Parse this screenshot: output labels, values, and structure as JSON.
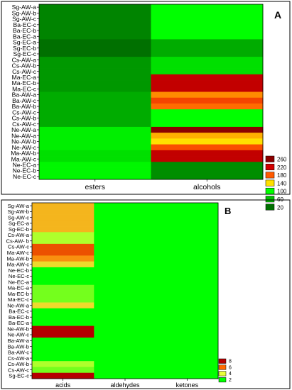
{
  "chart_data": [
    {
      "type": "heatmap",
      "panel": "A",
      "columns": [
        "esters",
        "alcohols"
      ],
      "rows": [
        "Sg-AW-a",
        "Sg-AW-b",
        "Sg-AW-c",
        "Ba-EC-c",
        "Ba-EC-b",
        "Ba-EC-a",
        "Sg-EC-a",
        "Sg-EC-b",
        "Sg-EC-c",
        "Cs-AW-a",
        "Cs-AW-b",
        "Cs-AW-c",
        "Ma-EC-a",
        "Ma-EC-b",
        "Ma-EC-c",
        "Ba-AW-a",
        "Ba-AW-c",
        "Ba-AW-b",
        "Cs-AW-c",
        "Cs-AW-b",
        "Cs-AW-c",
        "Ne-AW-a",
        "Ne-AW-a",
        "Ne-AW-b",
        "Ne-AW-c",
        "Ma-AW-b",
        "Ma-AW-c",
        "Ne-EC-a",
        "Ne-EC-b",
        "Ne-EC-c"
      ],
      "values": [
        [
          30,
          100
        ],
        [
          30,
          100
        ],
        [
          30,
          100
        ],
        [
          30,
          100
        ],
        [
          30,
          100
        ],
        [
          30,
          100
        ],
        [
          10,
          50
        ],
        [
          10,
          50
        ],
        [
          10,
          50
        ],
        [
          40,
          80
        ],
        [
          40,
          80
        ],
        [
          40,
          80
        ],
        [
          40,
          230
        ],
        [
          40,
          230
        ],
        [
          40,
          230
        ],
        [
          50,
          165
        ],
        [
          50,
          190
        ],
        [
          50,
          175
        ],
        [
          50,
          100
        ],
        [
          50,
          100
        ],
        [
          50,
          100
        ],
        [
          90,
          260
        ],
        [
          90,
          155
        ],
        [
          90,
          140
        ],
        [
          90,
          185
        ],
        [
          80,
          230
        ],
        [
          80,
          230
        ],
        [
          95,
          35
        ],
        [
          95,
          35
        ],
        [
          95,
          35
        ]
      ],
      "legend": {
        "levels": [
          260,
          220,
          180,
          140,
          100,
          60,
          20
        ],
        "colors": [
          "#8b0000",
          "#d40000",
          "#ff5a00",
          "#ffe000",
          "#00ff00",
          "#00c000",
          "#007000"
        ]
      }
    },
    {
      "type": "heatmap",
      "panel": "B",
      "columns": [
        "acids",
        "aldehydes",
        "ketones"
      ],
      "rows": [
        "Sg-AW-a",
        "Sg-AW-b",
        "Sg-AW-c",
        "Sg-EC-a",
        "Sg-EC-b",
        "Cs-AW-a",
        "Cs-AW- b",
        "Cs-AW-c",
        "Ma-AW-c",
        "Ma-AW-b",
        "Ma-AW-c",
        "Ne-EC-b",
        "Ne-EC-c",
        "Ne-EC-a",
        "Ma-EC-a",
        "Ma-EC-b",
        "Ma-EC-c",
        "Ne-AW-a",
        "Ba-EC-c",
        "Ba-EC-b",
        "Ba-EC-a",
        "Ne-AW-b",
        "Ne-AW-c",
        "Ba-AW-a",
        "Ba-AW-b",
        "Ba-AW-c",
        "Cs-AW-a",
        "Cs-AW-b",
        "Cs-AW-c",
        "Sg-EC-c"
      ],
      "values": [
        [
          5.0,
          0.8,
          1.8
        ],
        [
          5.0,
          0.8,
          1.8
        ],
        [
          5.0,
          0.8,
          1.8
        ],
        [
          5.0,
          0.8,
          1.8
        ],
        [
          5.0,
          0.8,
          1.8
        ],
        [
          3.5,
          0.8,
          1.2
        ],
        [
          3.5,
          0.8,
          1.2
        ],
        [
          6.5,
          0.8,
          1.2
        ],
        [
          6.5,
          1.6,
          1.2
        ],
        [
          5.5,
          1.6,
          1.2
        ],
        [
          4.5,
          0.8,
          1.2
        ],
        [
          1.8,
          1.4,
          1.2
        ],
        [
          1.8,
          1.6,
          1.2
        ],
        [
          1.3,
          1.4,
          1.2
        ],
        [
          3.0,
          0.8,
          1.2
        ],
        [
          3.0,
          0.8,
          1.2
        ],
        [
          3.0,
          0.8,
          1.2
        ],
        [
          4.5,
          0.8,
          1.2
        ],
        [
          1.5,
          0.8,
          1.2
        ],
        [
          1.5,
          0.8,
          1.2
        ],
        [
          1.5,
          0.8,
          1.2
        ],
        [
          8.0,
          0.8,
          1.2
        ],
        [
          8.0,
          0.8,
          1.2
        ],
        [
          1.0,
          0.8,
          1.2
        ],
        [
          2.0,
          0.8,
          1.2
        ],
        [
          2.0,
          0.8,
          1.2
        ],
        [
          1.8,
          0.8,
          1.2
        ],
        [
          3.5,
          0.8,
          1.2
        ],
        [
          3.0,
          0.8,
          1.2
        ],
        [
          8.0,
          0.8,
          1.8
        ]
      ],
      "legend": {
        "levels": [
          8,
          6,
          4,
          2
        ],
        "colors": [
          "#b40000",
          "#ff6a00",
          "#e8ff3a",
          "#00ff00"
        ]
      }
    }
  ],
  "panel_labels": [
    "A",
    "B"
  ]
}
